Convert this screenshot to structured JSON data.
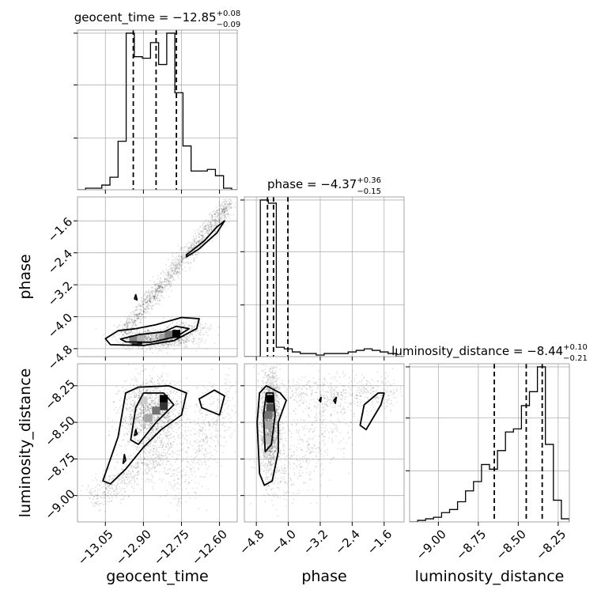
{
  "chart_data": {
    "type": "corner",
    "parameters": [
      "geocent_time",
      "phase",
      "luminosity_distance"
    ],
    "panels": [
      {
        "id": "hist-geocent_time",
        "type": "histogram",
        "x_param": "geocent_time",
        "title": {
          "base": "geocent_time = −12.85",
          "upper": "+0.08",
          "lower": "−0.09"
        },
        "xlim": [
          -13.16,
          -12.53
        ],
        "ylim": [
          0,
          1.02
        ],
        "grid": true,
        "bins": [
          -13.16,
          -13.128,
          -13.096,
          -13.064,
          -13.032,
          -13.0,
          -12.968,
          -12.936,
          -12.904,
          -12.872,
          -12.84,
          -12.808,
          -12.776,
          -12.744,
          -12.712,
          -12.68,
          -12.648,
          -12.616,
          -12.584,
          -12.552,
          -12.53
        ],
        "counts": [
          0,
          0.01,
          0.01,
          0.03,
          0.08,
          0.31,
          1.0,
          0.85,
          0.84,
          0.94,
          0.8,
          1.0,
          0.62,
          0.28,
          0.12,
          0.12,
          0.13,
          0.09,
          0.01,
          0.0
        ],
        "quantile_lines": [
          -12.94,
          -12.85,
          -12.77
        ],
        "xticks": [
          -13.05,
          -12.9,
          -12.75,
          -12.6
        ],
        "yticks": [
          0.33,
          0.67,
          1.0
        ]
      },
      {
        "id": "hist-phase",
        "type": "histogram",
        "x_param": "phase",
        "title": {
          "base": "phase = −4.37",
          "upper": "+0.36",
          "lower": "−0.15"
        },
        "xlim": [
          -5.1,
          -1.1
        ],
        "ylim": [
          0,
          1.02
        ],
        "grid": true,
        "bins": [
          -5.1,
          -4.9,
          -4.7,
          -4.5,
          -4.3,
          -4.1,
          -3.9,
          -3.7,
          -3.5,
          -3.3,
          -3.1,
          -2.9,
          -2.7,
          -2.5,
          -2.3,
          -2.1,
          -1.9,
          -1.7,
          -1.5,
          -1.3,
          -1.1
        ],
        "counts": [
          0,
          0,
          1.0,
          0.98,
          0.06,
          0.05,
          0.03,
          0.02,
          0.02,
          0.01,
          0.02,
          0.02,
          0.02,
          0.03,
          0.04,
          0.05,
          0.04,
          0.03,
          0.02,
          0
        ],
        "quantile_lines": [
          -4.52,
          -4.37,
          -4.01
        ],
        "xticks": [
          -4.8,
          -4.0,
          -3.2,
          -2.4,
          -1.6
        ],
        "yticks": [
          0.33,
          0.67,
          1.0
        ]
      },
      {
        "id": "hist-luminosity_distance",
        "type": "histogram",
        "x_param": "luminosity_distance",
        "title": {
          "base": "luminosity_distance = −8.44",
          "upper": "+0.10",
          "lower": "−0.21"
        },
        "xlim": [
          -9.18,
          -8.18
        ],
        "ylim": [
          0,
          1.02
        ],
        "grid": true,
        "bins": [
          -9.18,
          -9.13,
          -9.08,
          -9.03,
          -8.98,
          -8.93,
          -8.88,
          -8.83,
          -8.78,
          -8.73,
          -8.68,
          -8.63,
          -8.58,
          -8.53,
          -8.48,
          -8.43,
          -8.38,
          -8.33,
          -8.28,
          -8.23,
          -8.18
        ],
        "counts": [
          0,
          0.01,
          0.02,
          0.03,
          0.06,
          0.08,
          0.13,
          0.2,
          0.26,
          0.37,
          0.34,
          0.46,
          0.58,
          0.6,
          0.75,
          0.84,
          1.0,
          0.5,
          0.14,
          0.02
        ],
        "quantile_lines": [
          -8.65,
          -8.45,
          -8.35
        ],
        "xticks": [
          -9.0,
          -8.75,
          -8.5,
          -8.25
        ],
        "yticks": [
          0.33,
          0.67,
          1.0
        ]
      },
      {
        "id": "scatter-phase-vs-geocent_time",
        "type": "density",
        "x_param": "geocent_time",
        "y_param": "phase",
        "xlim": [
          -13.16,
          -12.53
        ],
        "ylim": [
          -5.0,
          -1.0
        ],
        "grid": true,
        "xticks": [
          -13.05,
          -12.9,
          -12.75,
          -12.6
        ],
        "yticks": [
          -1.6,
          -2.4,
          -3.2,
          -4.0,
          -4.8
        ],
        "ylabel": "phase",
        "point_clusters": [
          {
            "shape": "line",
            "from": [
              -12.98,
              -4.4
            ],
            "to": [
              -12.56,
              -1.15
            ],
            "sx": 0.015,
            "sy": 0.1,
            "n": 1400
          },
          {
            "shape": "blob",
            "center": [
              -12.85,
              -4.55
            ],
            "sx": 0.07,
            "sy": 0.12,
            "n": 900
          },
          {
            "shape": "blob",
            "center": [
              -12.72,
              -4.3
            ],
            "sx": 0.05,
            "sy": 0.12,
            "n": 160
          }
        ],
        "contours": [
          [
            [
              -13.05,
              -4.55
            ],
            [
              -13.0,
              -4.35
            ],
            [
              -12.93,
              -4.3
            ],
            [
              -12.85,
              -4.2
            ],
            [
              -12.75,
              -4.02
            ],
            [
              -12.68,
              -4.05
            ],
            [
              -12.69,
              -4.3
            ],
            [
              -12.78,
              -4.6
            ],
            [
              -12.9,
              -4.72
            ],
            [
              -13.03,
              -4.7
            ]
          ],
          [
            [
              -12.99,
              -4.56
            ],
            [
              -12.92,
              -4.45
            ],
            [
              -12.82,
              -4.38
            ],
            [
              -12.77,
              -4.24
            ],
            [
              -12.72,
              -4.3
            ],
            [
              -12.77,
              -4.5
            ],
            [
              -12.87,
              -4.64
            ],
            [
              -12.97,
              -4.63
            ]
          ],
          [
            [
              -12.73,
              -2.45
            ],
            [
              -12.66,
              -2.1
            ],
            [
              -12.61,
              -1.75
            ],
            [
              -12.58,
              -1.6
            ],
            [
              -12.61,
              -1.9
            ],
            [
              -12.68,
              -2.3
            ],
            [
              -12.73,
              -2.5
            ]
          ],
          [
            [
              -12.935,
              -3.55
            ],
            [
              -12.93,
              -3.45
            ],
            [
              -12.925,
              -3.58
            ]
          ]
        ],
        "density_cells": [
          {
            "x": -12.93,
            "y": -4.6,
            "level": 1.0
          },
          {
            "x": -12.92,
            "y": -4.6,
            "level": 0.9
          },
          {
            "x": -12.94,
            "y": -4.57,
            "level": 0.5
          },
          {
            "x": -12.91,
            "y": -4.54,
            "level": 0.3
          },
          {
            "x": -12.82,
            "y": -4.52,
            "level": 0.35
          },
          {
            "x": -12.8,
            "y": -4.45,
            "level": 0.55
          },
          {
            "x": -12.77,
            "y": -4.43,
            "level": 1.0
          }
        ]
      },
      {
        "id": "scatter-luminosity_distance-vs-geocent_time",
        "type": "density",
        "x_param": "geocent_time",
        "y_param": "luminosity_distance",
        "xlim": [
          -13.16,
          -12.53
        ],
        "ylim": [
          -9.18,
          -8.1
        ],
        "grid": true,
        "xticks": [
          -13.05,
          -12.9,
          -12.75,
          -12.6
        ],
        "yticks": [
          -8.25,
          -8.5,
          -8.75,
          -9.0
        ],
        "xlabel": "geocent_time",
        "ylabel": "luminosity_distance",
        "point_clusters": [
          {
            "shape": "blob",
            "center": [
              -12.87,
              -8.45
            ],
            "sx": 0.06,
            "sy": 0.12,
            "n": 1500
          },
          {
            "shape": "line",
            "from": [
              -13.1,
              -9.02
            ],
            "to": [
              -12.8,
              -8.7
            ],
            "sx": 0.03,
            "sy": 0.06,
            "n": 500
          },
          {
            "shape": "line",
            "from": [
              -12.78,
              -8.95
            ],
            "to": [
              -12.56,
              -8.3
            ],
            "sx": 0.04,
            "sy": 0.12,
            "n": 500
          }
        ],
        "contours": [
          [
            [
              -13.06,
              -8.9
            ],
            [
              -13.0,
              -8.6
            ],
            [
              -12.97,
              -8.3
            ],
            [
              -12.92,
              -8.26
            ],
            [
              -12.8,
              -8.25
            ],
            [
              -12.73,
              -8.3
            ],
            [
              -12.75,
              -8.45
            ],
            [
              -12.83,
              -8.55
            ],
            [
              -12.9,
              -8.67
            ],
            [
              -12.97,
              -8.82
            ],
            [
              -13.03,
              -8.92
            ]
          ],
          [
            [
              -12.95,
              -8.62
            ],
            [
              -12.93,
              -8.4
            ],
            [
              -12.9,
              -8.3
            ],
            [
              -12.82,
              -8.3
            ],
            [
              -12.78,
              -8.38
            ],
            [
              -12.85,
              -8.5
            ],
            [
              -12.92,
              -8.65
            ]
          ],
          [
            [
              -12.98,
              -8.78
            ],
            [
              -12.975,
              -8.72
            ],
            [
              -12.97,
              -8.76
            ]
          ],
          [
            [
              -12.935,
              -8.59
            ],
            [
              -12.93,
              -8.55
            ],
            [
              -12.925,
              -8.58
            ]
          ],
          [
            [
              -12.68,
              -8.34
            ],
            [
              -12.62,
              -8.28
            ],
            [
              -12.58,
              -8.32
            ],
            [
              -12.6,
              -8.45
            ],
            [
              -12.67,
              -8.4
            ]
          ]
        ],
        "density_cells": [
          {
            "x": -12.82,
            "y": -8.34,
            "level": 1.0
          },
          {
            "x": -12.82,
            "y": -8.39,
            "level": 0.8
          },
          {
            "x": -12.85,
            "y": -8.42,
            "level": 0.55
          },
          {
            "x": -12.9,
            "y": -8.35,
            "level": 0.2
          },
          {
            "x": -12.88,
            "y": -8.47,
            "level": 0.35
          }
        ]
      },
      {
        "id": "scatter-luminosity_distance-vs-phase",
        "type": "density",
        "x_param": "phase",
        "y_param": "luminosity_distance",
        "xlim": [
          -5.1,
          -1.1
        ],
        "ylim": [
          -9.18,
          -8.1
        ],
        "grid": true,
        "xticks": [
          -4.8,
          -4.0,
          -3.2,
          -2.4,
          -1.6
        ],
        "yticks": [
          -8.25,
          -8.5,
          -8.75,
          -9.0
        ],
        "xlabel": "phase",
        "point_clusters": [
          {
            "shape": "blob",
            "center": [
              -4.45,
              -8.5
            ],
            "sx": 0.12,
            "sy": 0.18,
            "n": 1800
          },
          {
            "shape": "line",
            "from": [
              -4.0,
              -8.3
            ],
            "to": [
              -1.3,
              -8.3
            ],
            "sx": 0.3,
            "sy": 0.06,
            "n": 500
          },
          {
            "shape": "line",
            "from": [
              -4.3,
              -8.9
            ],
            "to": [
              -2.7,
              -8.4
            ],
            "sx": 0.3,
            "sy": 0.15,
            "n": 500
          }
        ],
        "contours": [
          [
            [
              -4.72,
              -8.85
            ],
            [
              -4.78,
              -8.5
            ],
            [
              -4.72,
              -8.3
            ],
            [
              -4.55,
              -8.25
            ],
            [
              -4.2,
              -8.3
            ],
            [
              -4.05,
              -8.35
            ],
            [
              -4.25,
              -8.5
            ],
            [
              -4.25,
              -8.7
            ],
            [
              -4.4,
              -8.9
            ],
            [
              -4.6,
              -8.93
            ]
          ],
          [
            [
              -4.58,
              -8.7
            ],
            [
              -4.62,
              -8.45
            ],
            [
              -4.55,
              -8.3
            ],
            [
              -4.38,
              -8.3
            ],
            [
              -4.33,
              -8.45
            ],
            [
              -4.42,
              -8.65
            ]
          ],
          [
            [
              -3.22,
              -8.35
            ],
            [
              -3.18,
              -8.33
            ],
            [
              -3.19,
              -8.36
            ]
          ],
          [
            [
              -2.86,
              -8.35
            ],
            [
              -2.8,
              -8.33
            ],
            [
              -2.82,
              -8.37
            ]
          ],
          [
            [
              -2.2,
              -8.52
            ],
            [
              -2.1,
              -8.38
            ],
            [
              -1.75,
              -8.3
            ],
            [
              -1.6,
              -8.3
            ],
            [
              -1.68,
              -8.38
            ],
            [
              -1.9,
              -8.48
            ],
            [
              -2.05,
              -8.55
            ]
          ]
        ],
        "density_cells": [
          {
            "x": -4.45,
            "y": -8.34,
            "level": 1.0
          },
          {
            "x": -4.45,
            "y": -8.4,
            "level": 0.7
          },
          {
            "x": -4.5,
            "y": -8.45,
            "level": 0.55
          },
          {
            "x": -4.5,
            "y": -8.52,
            "level": 0.35
          },
          {
            "x": -4.55,
            "y": -8.62,
            "level": 0.25
          }
        ]
      }
    ]
  }
}
